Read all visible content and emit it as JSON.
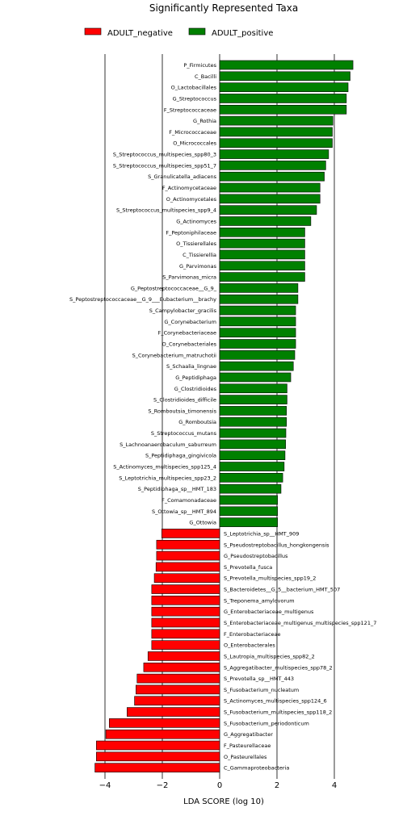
{
  "chart_data": {
    "type": "bar",
    "orientation": "horizontal",
    "title": "Significantly Represented Taxa",
    "xlabel": "LDA SCORE (log 10)",
    "ylabel": "",
    "xlim": [
      -4.4,
      4.8
    ],
    "xticks": [
      -4,
      -2,
      0,
      2,
      4
    ],
    "xtick_labels": [
      "−4",
      "−2",
      "0",
      "2",
      "4"
    ],
    "grid": "vertical lines at x ticks",
    "legend_position": "top",
    "series": [
      {
        "name": "ADULT_negative",
        "color": "#ff0000"
      },
      {
        "name": "ADULT_positive",
        "color": "#008000"
      }
    ],
    "bars": [
      {
        "label": "P_Firmicutes",
        "value": 4.65,
        "series": "ADULT_positive"
      },
      {
        "label": "C_Bacilli",
        "value": 4.55,
        "series": "ADULT_positive"
      },
      {
        "label": "O_Lactobacillales",
        "value": 4.48,
        "series": "ADULT_positive"
      },
      {
        "label": "G_Streptococcus",
        "value": 4.42,
        "series": "ADULT_positive"
      },
      {
        "label": "F_Streptococcaceae",
        "value": 4.42,
        "series": "ADULT_positive"
      },
      {
        "label": "G_Rothia",
        "value": 3.95,
        "series": "ADULT_positive"
      },
      {
        "label": "F_Micrococcaceae",
        "value": 3.93,
        "series": "ADULT_positive"
      },
      {
        "label": "O_Micrococcales",
        "value": 3.93,
        "series": "ADULT_positive"
      },
      {
        "label": "S_Streptococcus_multispecies_spp80_3",
        "value": 3.8,
        "series": "ADULT_positive"
      },
      {
        "label": "S_Streptococcus_multispecies_spp51_7",
        "value": 3.7,
        "series": "ADULT_positive"
      },
      {
        "label": "S_Granulicatella_adiacens",
        "value": 3.65,
        "series": "ADULT_positive"
      },
      {
        "label": "F_Actinomycetaceae",
        "value": 3.5,
        "series": "ADULT_positive"
      },
      {
        "label": "O_Actinomycetales",
        "value": 3.5,
        "series": "ADULT_positive"
      },
      {
        "label": "S_Streptococcus_multispecies_spp9_4",
        "value": 3.38,
        "series": "ADULT_positive"
      },
      {
        "label": "G_Actinomyces",
        "value": 3.18,
        "series": "ADULT_positive"
      },
      {
        "label": "F_Peptoniphilaceae",
        "value": 2.97,
        "series": "ADULT_positive"
      },
      {
        "label": "O_Tissierellales",
        "value": 2.97,
        "series": "ADULT_positive"
      },
      {
        "label": "C_Tissierellia",
        "value": 2.97,
        "series": "ADULT_positive"
      },
      {
        "label": "G_Parvimonas",
        "value": 2.97,
        "series": "ADULT_positive"
      },
      {
        "label": "S_Parvimonas_micra",
        "value": 2.97,
        "series": "ADULT_positive"
      },
      {
        "label": "G_Peptostreptococcaceae__G_9_",
        "value": 2.73,
        "series": "ADULT_positive"
      },
      {
        "label": "S_Peptostreptococcaceae__G_9___Eubacterium__brachy",
        "value": 2.73,
        "series": "ADULT_positive"
      },
      {
        "label": "S_Campylobacter_gracilis",
        "value": 2.65,
        "series": "ADULT_positive"
      },
      {
        "label": "G_Corynebacterium",
        "value": 2.65,
        "series": "ADULT_positive"
      },
      {
        "label": "F_Corynebacteriaceae",
        "value": 2.65,
        "series": "ADULT_positive"
      },
      {
        "label": "O_Corynebacteriales",
        "value": 2.65,
        "series": "ADULT_positive"
      },
      {
        "label": "S_Corynebacterium_matruchotii",
        "value": 2.62,
        "series": "ADULT_positive"
      },
      {
        "label": "S_Schaalia_lingnae",
        "value": 2.57,
        "series": "ADULT_positive"
      },
      {
        "label": "G_Peptidiphaga",
        "value": 2.48,
        "series": "ADULT_positive"
      },
      {
        "label": "G_Clostridioides",
        "value": 2.35,
        "series": "ADULT_positive"
      },
      {
        "label": "S_Clostridioides_difficile",
        "value": 2.35,
        "series": "ADULT_positive"
      },
      {
        "label": "S_Romboutsia_timonensis",
        "value": 2.33,
        "series": "ADULT_positive"
      },
      {
        "label": "G_Romboutsia",
        "value": 2.33,
        "series": "ADULT_positive"
      },
      {
        "label": "S_Streptococcus_mutans",
        "value": 2.31,
        "series": "ADULT_positive"
      },
      {
        "label": "S_Lachnoanaerobaculum_saburreum",
        "value": 2.3,
        "series": "ADULT_positive"
      },
      {
        "label": "S_Peptidiphaga_gingivicola",
        "value": 2.28,
        "series": "ADULT_positive"
      },
      {
        "label": "S_Actinomyces_multispecies_spp125_4",
        "value": 2.25,
        "series": "ADULT_positive"
      },
      {
        "label": "S_Leptotrichia_multispecies_spp23_2",
        "value": 2.2,
        "series": "ADULT_positive"
      },
      {
        "label": "S_Peptidiphaga_sp__HMT_183",
        "value": 2.14,
        "series": "ADULT_positive"
      },
      {
        "label": "F_Comamonadaceae",
        "value": 2.02,
        "series": "ADULT_positive"
      },
      {
        "label": "S_Ottowia_sp__HMT_894",
        "value": 2.02,
        "series": "ADULT_positive"
      },
      {
        "label": "G_Ottowia",
        "value": 2.02,
        "series": "ADULT_positive"
      },
      {
        "label": "S_Leptotrichia_sp__HMT_909",
        "value": -2.02,
        "series": "ADULT_negative"
      },
      {
        "label": "S_Pseudostreptobacillus_hongkongensis",
        "value": -2.2,
        "series": "ADULT_negative"
      },
      {
        "label": "G_Pseudostreptobacillus",
        "value": -2.2,
        "series": "ADULT_negative"
      },
      {
        "label": "S_Prevotella_fusca",
        "value": -2.22,
        "series": "ADULT_negative"
      },
      {
        "label": "S_Prevotella_multispecies_spp19_2",
        "value": -2.28,
        "series": "ADULT_negative"
      },
      {
        "label": "S_Bacteroidetes__G_5__bacterium_HMT_507",
        "value": -2.37,
        "series": "ADULT_negative"
      },
      {
        "label": "S_Treponema_amylovorum",
        "value": -2.37,
        "series": "ADULT_negative"
      },
      {
        "label": "G_Enterobacteriaceae_multigenus",
        "value": -2.37,
        "series": "ADULT_negative"
      },
      {
        "label": "S_Enterobacteriaceae_multigenus_multispecies_spp121_7",
        "value": -2.37,
        "series": "ADULT_negative"
      },
      {
        "label": "F_Enterobacteriaceae",
        "value": -2.37,
        "series": "ADULT_negative"
      },
      {
        "label": "O_Enterobacterales",
        "value": -2.37,
        "series": "ADULT_negative"
      },
      {
        "label": "S_Lautropia_multispecies_spp82_2",
        "value": -2.5,
        "series": "ADULT_negative"
      },
      {
        "label": "S_Aggregatibacter_multispecies_spp78_2",
        "value": -2.65,
        "series": "ADULT_negative"
      },
      {
        "label": "S_Prevotella_sp__HMT_443",
        "value": -2.88,
        "series": "ADULT_negative"
      },
      {
        "label": "S_Fusobacterium_nucleatum",
        "value": -2.92,
        "series": "ADULT_negative"
      },
      {
        "label": "S_Actinomyces_multispecies_spp124_6",
        "value": -2.97,
        "series": "ADULT_negative"
      },
      {
        "label": "S_Fusobacterium_multispecies_spp118_2",
        "value": -3.23,
        "series": "ADULT_negative"
      },
      {
        "label": "S_Fusobacterium_periodonticum",
        "value": -3.85,
        "series": "ADULT_negative"
      },
      {
        "label": "G_Aggregatibacter",
        "value": -3.97,
        "series": "ADULT_negative"
      },
      {
        "label": "F_Pasteurellaceae",
        "value": -4.3,
        "series": "ADULT_negative"
      },
      {
        "label": "O_Pasteurellales",
        "value": -4.3,
        "series": "ADULT_negative"
      },
      {
        "label": "C_Gammaproteobacteria",
        "value": -4.35,
        "series": "ADULT_negative"
      }
    ]
  }
}
